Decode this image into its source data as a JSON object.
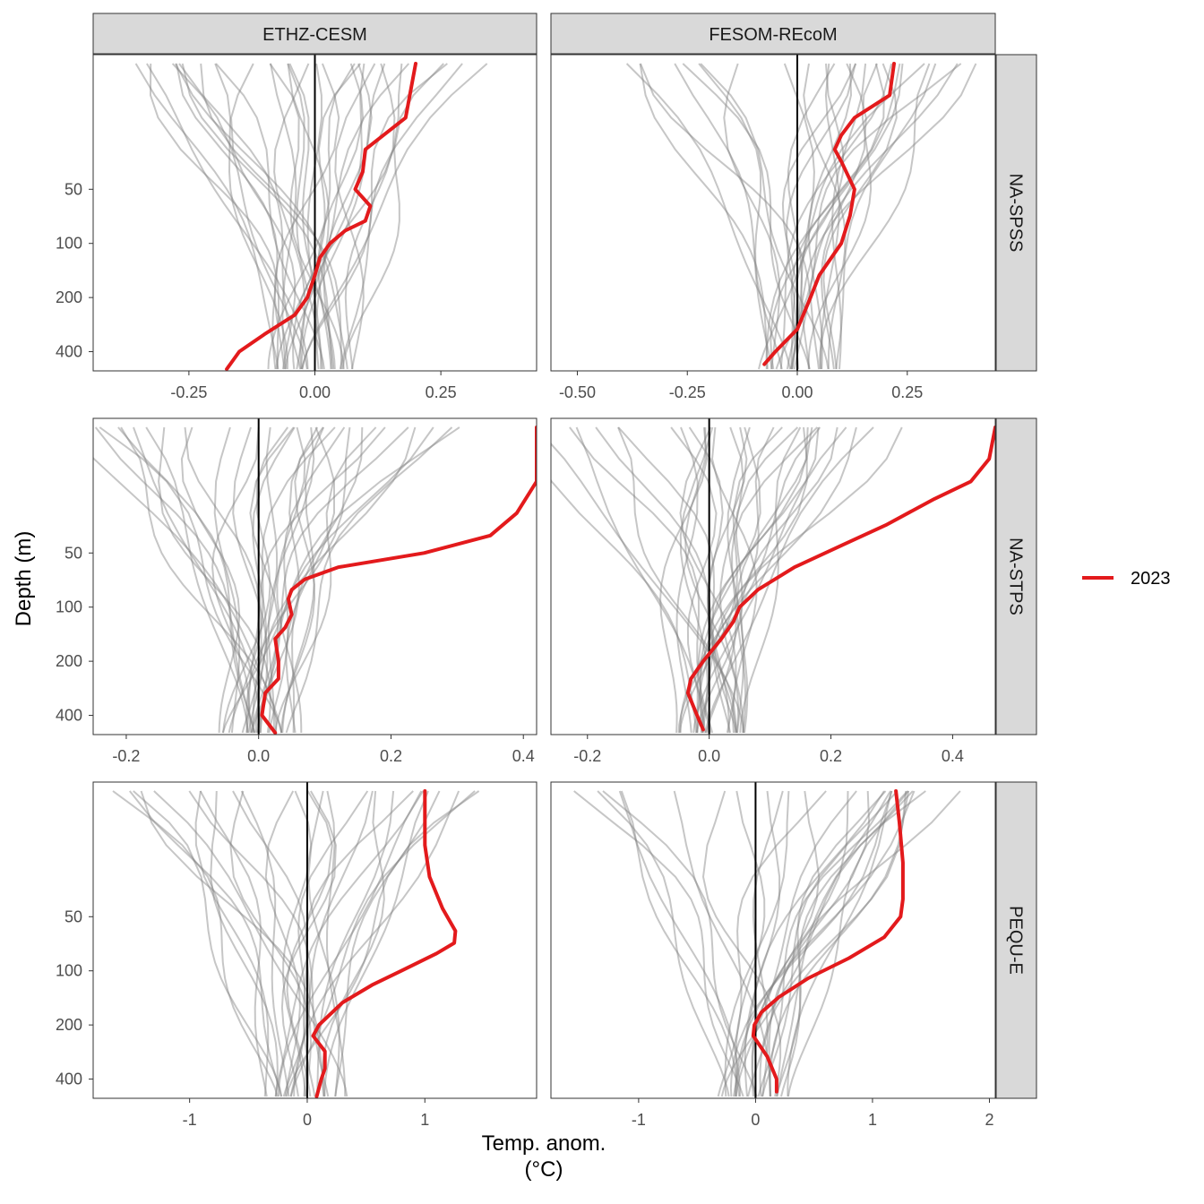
{
  "chart_data": {
    "type": "line",
    "xlabel_line1": "Temp. anom.",
    "xlabel_line2": "(°C)",
    "ylabel": "Depth (m)",
    "y_scale": "log",
    "y_ticks": [
      50,
      100,
      200,
      400
    ],
    "y_tick_labels": [
      "50",
      "100",
      "200",
      "400"
    ],
    "columns": [
      "ETHZ-CESM",
      "FESOM-REcoM"
    ],
    "rows": [
      "NA-SPSS",
      "NA-STPS",
      "PEQU-E"
    ],
    "legend": {
      "entries": [
        "2023"
      ],
      "position": "right"
    },
    "colors": {
      "highlight": "#e31a1c",
      "ensemble": "#808080",
      "zero_line": "#000000",
      "strip_fill": "#d9d9d9"
    },
    "zero_line_x": 0,
    "panels": [
      {
        "row": "NA-SPSS",
        "col": "ETHZ-CESM",
        "xlim": [
          -0.44,
          0.44
        ],
        "x_ticks": [
          -0.25,
          0,
          0.25
        ],
        "x_tick_labels": [
          "-0.25",
          "0.00",
          "0.25"
        ],
        "highlight_2023": [
          [
            0.2,
            10
          ],
          [
            0.18,
            20
          ],
          [
            0.1,
            30
          ],
          [
            0.095,
            40
          ],
          [
            0.08,
            50
          ],
          [
            0.11,
            62
          ],
          [
            0.1,
            75
          ],
          [
            0.06,
            85
          ],
          [
            0.03,
            100
          ],
          [
            0.01,
            120
          ],
          [
            0,
            150
          ],
          [
            -0.015,
            200
          ],
          [
            -0.04,
            250
          ],
          [
            -0.1,
            320
          ],
          [
            -0.15,
            400
          ],
          [
            -0.175,
            500
          ]
        ],
        "ensemble_count": 34
      },
      {
        "row": "NA-SPSS",
        "col": "FESOM-REcoM",
        "xlim": [
          -0.56,
          0.45
        ],
        "x_ticks": [
          -0.5,
          -0.25,
          0,
          0.25
        ],
        "x_tick_labels": [
          "-0.50",
          "-0.25",
          "0.00",
          "0.25"
        ],
        "highlight_2023": [
          [
            0.22,
            10
          ],
          [
            0.21,
            15
          ],
          [
            0.13,
            20
          ],
          [
            0.1,
            25
          ],
          [
            0.085,
            30
          ],
          [
            0.1,
            35
          ],
          [
            0.13,
            50
          ],
          [
            0.12,
            70
          ],
          [
            0.1,
            100
          ],
          [
            0.05,
            150
          ],
          [
            0.03,
            200
          ],
          [
            0,
            300
          ],
          [
            -0.05,
            400
          ],
          [
            -0.075,
            470
          ]
        ],
        "ensemble_count": 30
      },
      {
        "row": "NA-STPS",
        "col": "ETHZ-CESM",
        "xlim": [
          -0.25,
          0.42
        ],
        "x_ticks": [
          -0.2,
          0,
          0.2,
          0.4
        ],
        "x_tick_labels": [
          "-0.2",
          "0.0",
          "0.2",
          "0.4"
        ],
        "highlight_2023": [
          [
            0.42,
            10
          ],
          [
            0.42,
            20
          ],
          [
            0.39,
            30
          ],
          [
            0.35,
            40
          ],
          [
            0.25,
            50
          ],
          [
            0.12,
            60
          ],
          [
            0.07,
            70
          ],
          [
            0.05,
            80
          ],
          [
            0.045,
            90
          ],
          [
            0.05,
            110
          ],
          [
            0.04,
            130
          ],
          [
            0.025,
            150
          ],
          [
            0.03,
            200
          ],
          [
            0.03,
            250
          ],
          [
            0.01,
            300
          ],
          [
            0.005,
            400
          ],
          [
            0.025,
            500
          ]
        ],
        "ensemble_count": 34
      },
      {
        "row": "NA-STPS",
        "col": "FESOM-REcoM",
        "xlim": [
          -0.26,
          0.47
        ],
        "x_ticks": [
          -0.2,
          0,
          0.2,
          0.4
        ],
        "x_tick_labels": [
          "-0.2",
          "0.0",
          "0.2",
          "0.4"
        ],
        "highlight_2023": [
          [
            0.47,
            10
          ],
          [
            0.46,
            15
          ],
          [
            0.43,
            20
          ],
          [
            0.37,
            25
          ],
          [
            0.29,
            35
          ],
          [
            0.22,
            45
          ],
          [
            0.14,
            60
          ],
          [
            0.08,
            80
          ],
          [
            0.05,
            100
          ],
          [
            0.04,
            120
          ],
          [
            0.02,
            150
          ],
          [
            -0.01,
            200
          ],
          [
            -0.03,
            250
          ],
          [
            -0.035,
            300
          ],
          [
            -0.02,
            400
          ],
          [
            -0.01,
            480
          ]
        ],
        "ensemble_count": 34
      },
      {
        "row": "PEQU-E",
        "col": "ETHZ-CESM",
        "xlim": [
          -1.82,
          1.95
        ],
        "x_ticks": [
          -1,
          0,
          1
        ],
        "x_tick_labels": [
          "-1",
          "0",
          "1"
        ],
        "highlight_2023": [
          [
            1,
            10
          ],
          [
            1,
            20
          ],
          [
            1.04,
            30
          ],
          [
            1.15,
            45
          ],
          [
            1.26,
            60
          ],
          [
            1.25,
            70
          ],
          [
            1.1,
            80
          ],
          [
            0.8,
            100
          ],
          [
            0.55,
            120
          ],
          [
            0.3,
            150
          ],
          [
            0.1,
            200
          ],
          [
            0.05,
            230
          ],
          [
            0.15,
            280
          ],
          [
            0.15,
            350
          ],
          [
            0.12,
            400
          ],
          [
            0.08,
            500
          ]
        ],
        "ensemble_count": 30
      },
      {
        "row": "PEQU-E",
        "col": "FESOM-REcoM",
        "xlim": [
          -1.75,
          2.05
        ],
        "x_ticks": [
          -1,
          0,
          1,
          2
        ],
        "x_tick_labels": [
          "-1",
          "0",
          "1",
          "2"
        ],
        "highlight_2023": [
          [
            1.2,
            10
          ],
          [
            1.23,
            15
          ],
          [
            1.26,
            25
          ],
          [
            1.26,
            40
          ],
          [
            1.24,
            50
          ],
          [
            1.1,
            65
          ],
          [
            0.8,
            85
          ],
          [
            0.45,
            110
          ],
          [
            0.2,
            140
          ],
          [
            0.05,
            170
          ],
          [
            -0.01,
            200
          ],
          [
            -0.02,
            230
          ],
          [
            0.1,
            300
          ],
          [
            0.18,
            400
          ],
          [
            0.18,
            470
          ]
        ],
        "ensemble_count": 30
      }
    ]
  }
}
